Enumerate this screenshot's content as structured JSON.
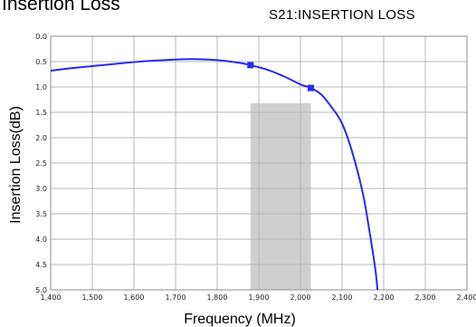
{
  "page": {
    "title": "Insertion Loss"
  },
  "chart_data": {
    "type": "line",
    "title": "S21:INSERTION LOSS",
    "xlabel": "Frequency (MHz)",
    "ylabel": "Insertion Loss(dB)",
    "xlim": [
      1400,
      2400
    ],
    "ylim": [
      0,
      5
    ],
    "y_inverted": true,
    "grid": true,
    "x_ticks": [
      1400,
      1500,
      1600,
      1700,
      1800,
      1900,
      2000,
      2100,
      2200,
      2300,
      2400
    ],
    "x_tick_labels": [
      "1,400",
      "1,500",
      "1,600",
      "1,700",
      "1,800",
      "1,900",
      "2,000",
      "2,100",
      "2,200",
      "2,300",
      "2,400"
    ],
    "y_ticks": [
      0,
      0.5,
      1,
      1.5,
      2,
      2.5,
      3,
      3.5,
      4,
      4.5,
      5
    ],
    "y_tick_labels": [
      "0.0",
      "0.5",
      "1.0",
      "1.5",
      "2.0",
      "2.5",
      "3.0",
      "3.5",
      "4.0",
      "4.5",
      "5.0"
    ],
    "series": [
      {
        "color": "#2a2aee",
        "x": [
          1400,
          1450,
          1500,
          1550,
          1600,
          1650,
          1700,
          1740,
          1800,
          1850,
          1880,
          1920,
          1960,
          2000,
          2025,
          2050,
          2075,
          2100,
          2125,
          2150,
          2165,
          2180,
          2185
        ],
        "y": [
          0.68,
          0.63,
          0.59,
          0.55,
          0.51,
          0.48,
          0.46,
          0.45,
          0.47,
          0.52,
          0.57,
          0.66,
          0.79,
          0.95,
          1.02,
          1.15,
          1.4,
          1.72,
          2.3,
          3.1,
          3.8,
          4.6,
          5.0
        ]
      }
    ],
    "markers": [
      {
        "x": 1880,
        "y": 0.57
      },
      {
        "x": 2025,
        "y": 1.02
      }
    ],
    "band": {
      "x_start": 1880,
      "x_end": 2025,
      "y_start": 1.32,
      "y_end": 5.0,
      "color": "#cfcfcf"
    }
  }
}
